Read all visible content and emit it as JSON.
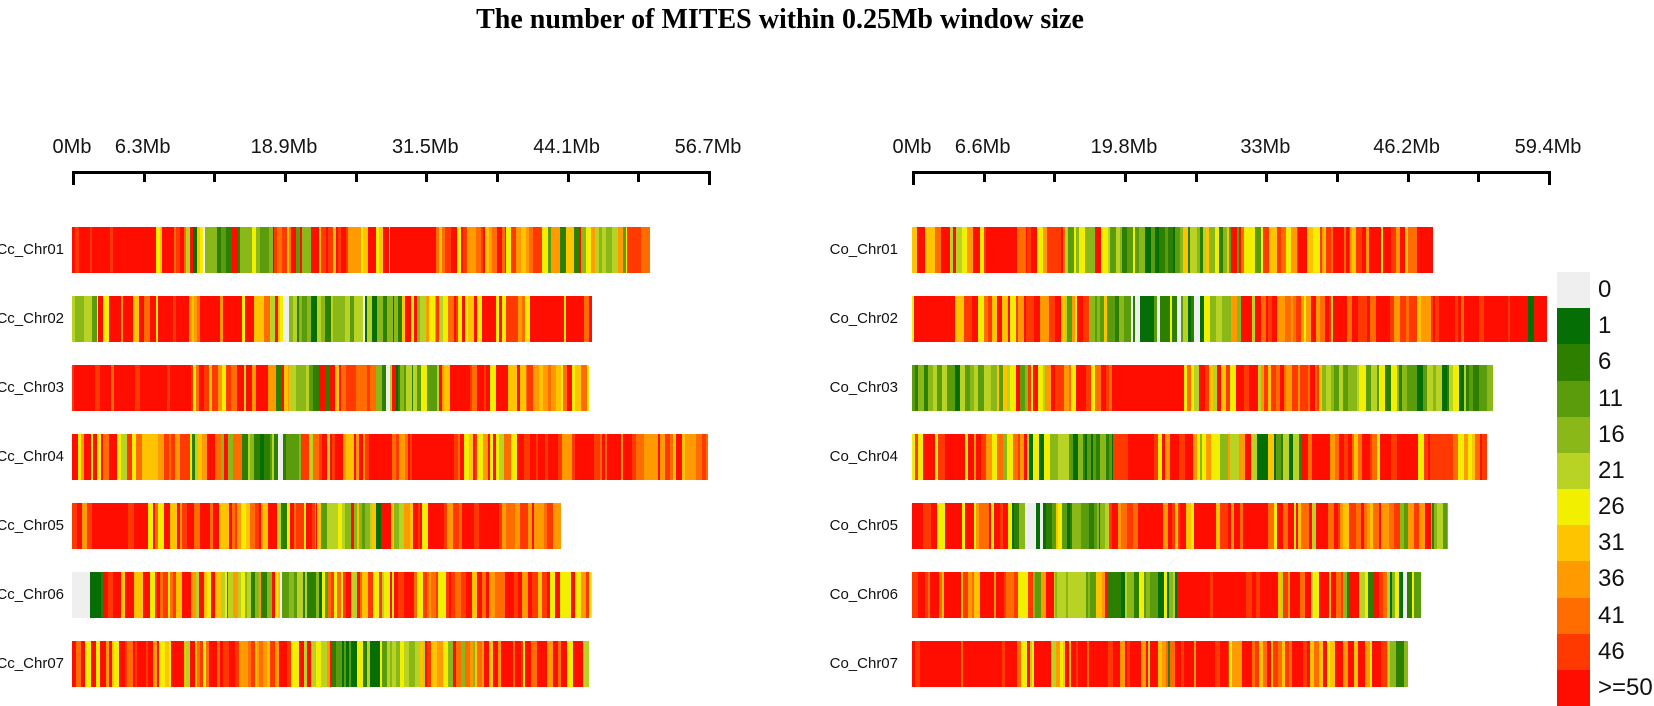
{
  "chart_data": {
    "type": "heatmap",
    "title": "The number of MITES within 0.25Mb window size",
    "window_size": "0.25Mb",
    "legend_bins": [
      {
        "label": "0",
        "color": "#efefef"
      },
      {
        "label": "1",
        "color": "#056e05"
      },
      {
        "label": "6",
        "color": "#2d7f00"
      },
      {
        "label": "11",
        "color": "#5a9c0c"
      },
      {
        "label": "16",
        "color": "#8ab818"
      },
      {
        "label": "21",
        "color": "#b9d324"
      },
      {
        "label": "26",
        "color": "#f3ef00"
      },
      {
        "label": "31",
        "color": "#ffc400"
      },
      {
        "label": "36",
        "color": "#ff9b00"
      },
      {
        "label": "41",
        "color": "#ff6c00"
      },
      {
        "label": "46",
        "color": "#ff3900"
      },
      {
        "label": ">=50",
        "color": "#ff0e00"
      }
    ],
    "seed": 12,
    "stripe_mixes": {
      "solid_red": [
        [
          11,
          0.88
        ],
        [
          10,
          0.08
        ],
        [
          9,
          0.04
        ]
      ],
      "red": [
        [
          11,
          0.58
        ],
        [
          10,
          0.16
        ],
        [
          9,
          0.09
        ],
        [
          8,
          0.07
        ],
        [
          7,
          0.05
        ],
        [
          6,
          0.05
        ]
      ],
      "red_yellow": [
        [
          11,
          0.38
        ],
        [
          10,
          0.12
        ],
        [
          9,
          0.1
        ],
        [
          8,
          0.07
        ],
        [
          7,
          0.1
        ],
        [
          6,
          0.16
        ],
        [
          5,
          0.07
        ]
      ],
      "orange_mix": [
        [
          9,
          0.24
        ],
        [
          10,
          0.22
        ],
        [
          8,
          0.2
        ],
        [
          11,
          0.16
        ],
        [
          7,
          0.12
        ],
        [
          6,
          0.06
        ]
      ],
      "mixed": [
        [
          11,
          0.24
        ],
        [
          10,
          0.13
        ],
        [
          9,
          0.11
        ],
        [
          8,
          0.1
        ],
        [
          7,
          0.12
        ],
        [
          6,
          0.1
        ],
        [
          5,
          0.08
        ],
        [
          4,
          0.06
        ],
        [
          3,
          0.04
        ],
        [
          2,
          0.02
        ]
      ],
      "yellow_green": [
        [
          5,
          0.24
        ],
        [
          4,
          0.2
        ],
        [
          6,
          0.18
        ],
        [
          3,
          0.12
        ],
        [
          7,
          0.1
        ],
        [
          8,
          0.07
        ],
        [
          2,
          0.05
        ],
        [
          11,
          0.04
        ]
      ],
      "green": [
        [
          3,
          0.2
        ],
        [
          4,
          0.18
        ],
        [
          2,
          0.16
        ],
        [
          5,
          0.14
        ],
        [
          1,
          0.12
        ],
        [
          6,
          0.08
        ],
        [
          0,
          0.04
        ],
        [
          7,
          0.04
        ],
        [
          11,
          0.04
        ]
      ],
      "dark_green": [
        [
          1,
          0.3
        ],
        [
          2,
          0.24
        ],
        [
          3,
          0.14
        ],
        [
          4,
          0.1
        ],
        [
          0,
          0.08
        ],
        [
          5,
          0.06
        ],
        [
          6,
          0.04
        ],
        [
          11,
          0.04
        ]
      ],
      "green_grey": [
        [
          0,
          0.26
        ],
        [
          1,
          0.18
        ],
        [
          2,
          0.14
        ],
        [
          3,
          0.12
        ],
        [
          4,
          0.1
        ],
        [
          5,
          0.08
        ],
        [
          6,
          0.12
        ]
      ],
      "grey": [
        [
          0,
          0.6
        ],
        [
          1,
          0.12
        ],
        [
          2,
          0.1
        ],
        [
          3,
          0.08
        ],
        [
          5,
          0.05
        ],
        [
          6,
          0.05
        ]
      ]
    },
    "panels": [
      {
        "name": "Cc",
        "axis": {
          "max_mb": 56.7,
          "tick_interval_mb": 6.3,
          "tick_labels": [
            {
              "mb": 0,
              "label": "0Mb"
            },
            {
              "mb": 6.3,
              "label": "6.3Mb"
            },
            {
              "mb": 18.9,
              "label": "18.9Mb"
            },
            {
              "mb": 31.5,
              "label": "31.5Mb"
            },
            {
              "mb": 44.1,
              "label": "44.1Mb"
            },
            {
              "mb": 56.7,
              "label": "56.7Mb"
            }
          ]
        },
        "chromosomes": [
          {
            "name": "Cc_Chr01",
            "length_mb": 51.5,
            "regions": [
              [
                0.13,
                "solid_red"
              ],
              [
                0.08,
                "red_yellow"
              ],
              [
                0.14,
                "green"
              ],
              [
                0.08,
                "mixed"
              ],
              [
                0.12,
                "red_yellow"
              ],
              [
                0.08,
                "solid_red"
              ],
              [
                0.12,
                "orange_mix"
              ],
              [
                0.13,
                "mixed"
              ],
              [
                0.08,
                "yellow_green"
              ],
              [
                0.04,
                "orange_mix"
              ]
            ]
          },
          {
            "name": "Cc_Chr02",
            "length_mb": 46.4,
            "regions": [
              [
                0.05,
                "yellow_green"
              ],
              [
                0.12,
                "red_yellow"
              ],
              [
                0.18,
                "red"
              ],
              [
                0.05,
                "mixed"
              ],
              [
                0.16,
                "green"
              ],
              [
                0.06,
                "dark_green"
              ],
              [
                0.08,
                "mixed"
              ],
              [
                0.18,
                "red_yellow"
              ],
              [
                0.12,
                "red"
              ]
            ]
          },
          {
            "name": "Cc_Chr03",
            "length_mb": 46.1,
            "regions": [
              [
                0.22,
                "solid_red"
              ],
              [
                0.1,
                "red_yellow"
              ],
              [
                0.1,
                "mixed"
              ],
              [
                0.08,
                "green"
              ],
              [
                0.1,
                "mixed"
              ],
              [
                0.06,
                "dark_green"
              ],
              [
                0.05,
                "yellow_green"
              ],
              [
                0.17,
                "red"
              ],
              [
                0.12,
                "orange_mix"
              ]
            ]
          },
          {
            "name": "Cc_Chr04",
            "length_mb": 56.7,
            "regions": [
              [
                0.1,
                "red_yellow"
              ],
              [
                0.08,
                "orange_mix"
              ],
              [
                0.1,
                "mixed"
              ],
              [
                0.08,
                "green"
              ],
              [
                0.1,
                "red_yellow"
              ],
              [
                0.14,
                "red"
              ],
              [
                0.1,
                "red_yellow"
              ],
              [
                0.2,
                "red"
              ],
              [
                0.1,
                "orange_mix"
              ]
            ]
          },
          {
            "name": "Cc_Chr05",
            "length_mb": 43.6,
            "regions": [
              [
                0.3,
                "red"
              ],
              [
                0.12,
                "red_yellow"
              ],
              [
                0.08,
                "mixed"
              ],
              [
                0.1,
                "yellow_green"
              ],
              [
                0.08,
                "green"
              ],
              [
                0.2,
                "red"
              ],
              [
                0.12,
                "orange_mix"
              ]
            ]
          },
          {
            "name": "Cc_Chr06",
            "length_mb": 46.4,
            "regions": [
              [
                0.045,
                "grey"
              ],
              [
                0.015,
                "dark_green"
              ],
              [
                0.14,
                "red"
              ],
              [
                0.1,
                "red_yellow"
              ],
              [
                0.1,
                "yellow_green"
              ],
              [
                0.08,
                "green"
              ],
              [
                0.12,
                "mixed"
              ],
              [
                0.25,
                "red"
              ],
              [
                0.15,
                "red_yellow"
              ]
            ]
          },
          {
            "name": "Cc_Chr07",
            "length_mb": 46.1,
            "regions": [
              [
                0.18,
                "red"
              ],
              [
                0.1,
                "red_yellow"
              ],
              [
                0.12,
                "orange_mix"
              ],
              [
                0.1,
                "mixed"
              ],
              [
                0.1,
                "dark_green"
              ],
              [
                0.08,
                "yellow_green"
              ],
              [
                0.1,
                "mixed"
              ],
              [
                0.16,
                "red"
              ],
              [
                0.06,
                "red_yellow"
              ]
            ]
          }
        ]
      },
      {
        "name": "Co",
        "axis": {
          "max_mb": 59.4,
          "tick_interval_mb": 6.6,
          "tick_labels": [
            {
              "mb": 0,
              "label": "0Mb"
            },
            {
              "mb": 6.6,
              "label": "6.6Mb"
            },
            {
              "mb": 19.8,
              "label": "19.8Mb"
            },
            {
              "mb": 33,
              "label": "33Mb"
            },
            {
              "mb": 46.2,
              "label": "46.2Mb"
            },
            {
              "mb": 59.4,
              "label": "59.4Mb"
            }
          ]
        },
        "chromosomes": [
          {
            "name": "Co_Chr01",
            "length_mb": 48.7,
            "regions": [
              [
                0.12,
                "red_yellow"
              ],
              [
                0.1,
                "red"
              ],
              [
                0.08,
                "mixed"
              ],
              [
                0.14,
                "green"
              ],
              [
                0.08,
                "dark_green"
              ],
              [
                0.1,
                "yellow_green"
              ],
              [
                0.12,
                "mixed"
              ],
              [
                0.1,
                "red_yellow"
              ],
              [
                0.16,
                "red"
              ]
            ]
          },
          {
            "name": "Co_Chr02",
            "length_mb": 59.3,
            "regions": [
              [
                0.1,
                "red"
              ],
              [
                0.08,
                "red_yellow"
              ],
              [
                0.1,
                "mixed"
              ],
              [
                0.08,
                "green"
              ],
              [
                0.1,
                "green_grey"
              ],
              [
                0.08,
                "yellow_green"
              ],
              [
                0.12,
                "orange_mix"
              ],
              [
                0.1,
                "red_yellow"
              ],
              [
                0.07,
                "orange_mix"
              ],
              [
                0.14,
                "solid_red"
              ],
              [
                0.01,
                "dark_green"
              ],
              [
                0.02,
                "red"
              ]
            ]
          },
          {
            "name": "Co_Chr03",
            "length_mb": 54.3,
            "regions": [
              [
                0.1,
                "green"
              ],
              [
                0.1,
                "yellow_green"
              ],
              [
                0.13,
                "red_yellow"
              ],
              [
                0.13,
                "solid_red"
              ],
              [
                0.14,
                "red_yellow"
              ],
              [
                0.1,
                "orange_mix"
              ],
              [
                0.1,
                "yellow_green"
              ],
              [
                0.12,
                "green"
              ],
              [
                0.06,
                "dark_green"
              ],
              [
                0.02,
                "yellow_green"
              ]
            ]
          },
          {
            "name": "Co_Chr04",
            "length_mb": 53.7,
            "regions": [
              [
                0.12,
                "red"
              ],
              [
                0.08,
                "mixed"
              ],
              [
                0.1,
                "green"
              ],
              [
                0.05,
                "dark_green"
              ],
              [
                0.15,
                "red"
              ],
              [
                0.1,
                "yellow_green"
              ],
              [
                0.08,
                "green"
              ],
              [
                0.12,
                "red"
              ],
              [
                0.1,
                "red_yellow"
              ],
              [
                0.1,
                "orange_mix"
              ]
            ]
          },
          {
            "name": "Co_Chr05",
            "length_mb": 50.1,
            "regions": [
              [
                0.1,
                "red"
              ],
              [
                0.08,
                "red_yellow"
              ],
              [
                0.1,
                "green"
              ],
              [
                0.07,
                "dark_green"
              ],
              [
                0.1,
                "mixed"
              ],
              [
                0.2,
                "red"
              ],
              [
                0.12,
                "red_yellow"
              ],
              [
                0.13,
                "orange_mix"
              ],
              [
                0.07,
                "mixed"
              ],
              [
                0.03,
                "yellow_green"
              ]
            ]
          },
          {
            "name": "Co_Chr06",
            "length_mb": 47.5,
            "regions": [
              [
                0.2,
                "red"
              ],
              [
                0.08,
                "mixed"
              ],
              [
                0.1,
                "yellow_green"
              ],
              [
                0.08,
                "dark_green"
              ],
              [
                0.06,
                "green"
              ],
              [
                0.2,
                "solid_red"
              ],
              [
                0.1,
                "red_yellow"
              ],
              [
                0.12,
                "mixed"
              ],
              [
                0.06,
                "green"
              ]
            ]
          },
          {
            "name": "Co_Chr07",
            "length_mb": 46.3,
            "regions": [
              [
                0.22,
                "solid_red"
              ],
              [
                0.1,
                "red_yellow"
              ],
              [
                0.1,
                "red"
              ],
              [
                0.1,
                "mixed"
              ],
              [
                0.12,
                "red"
              ],
              [
                0.12,
                "orange_mix"
              ],
              [
                0.1,
                "red_yellow"
              ],
              [
                0.1,
                "red"
              ],
              [
                0.04,
                "yellow_green"
              ]
            ]
          }
        ]
      }
    ]
  }
}
